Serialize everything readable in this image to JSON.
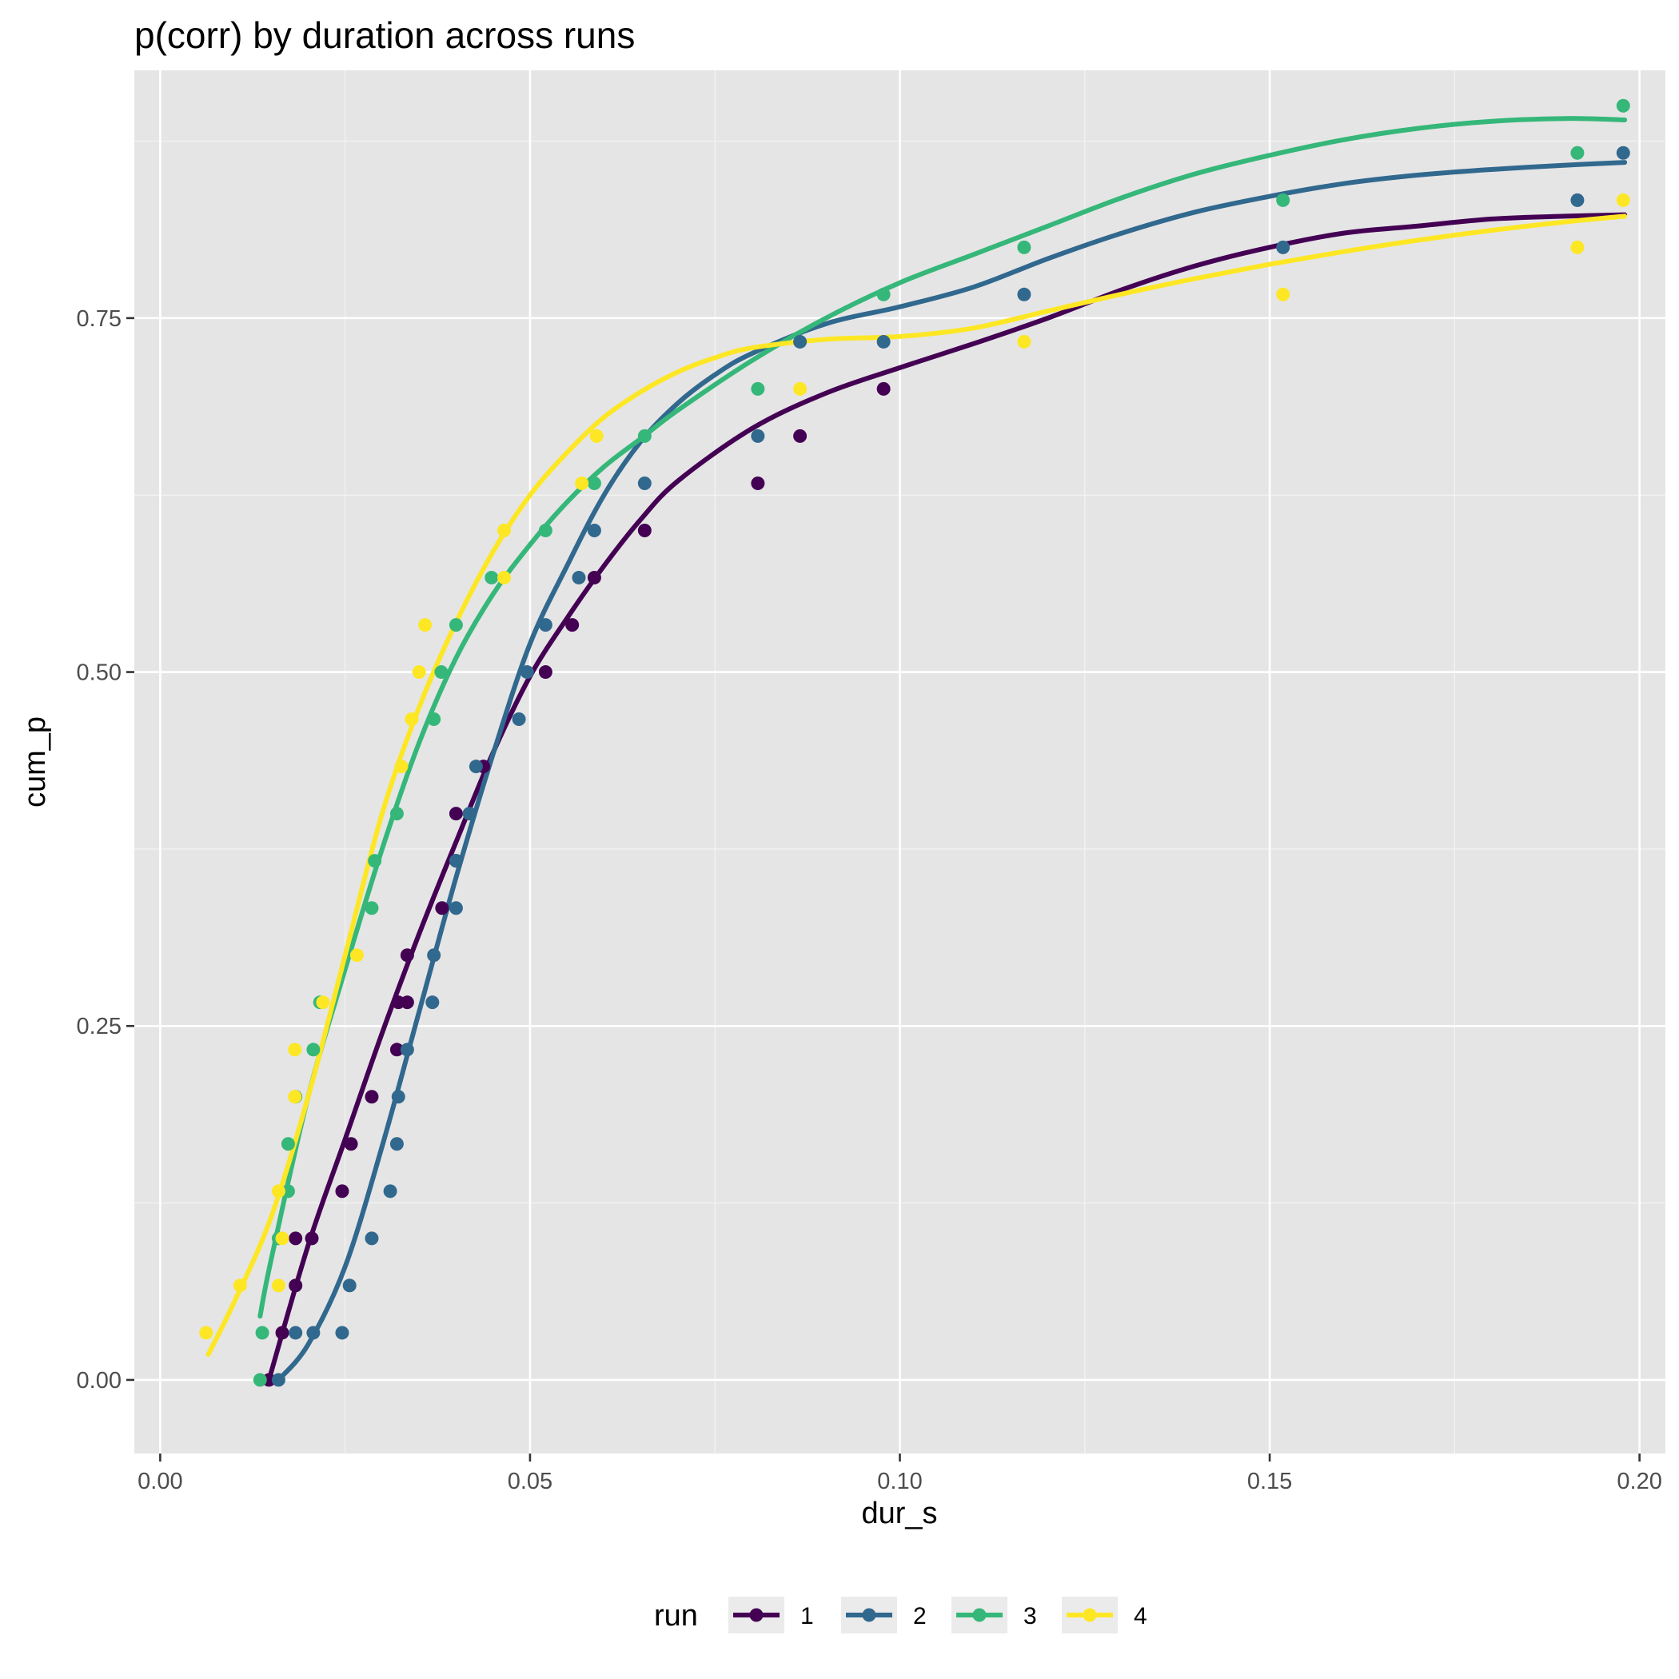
{
  "chart_data": {
    "type": "scatter",
    "title": "p(corr) by duration across runs",
    "xlabel": "dur_s",
    "ylabel": "cum_p",
    "xlim": [
      -0.0035,
      0.2035
    ],
    "ylim": [
      -0.052,
      0.925
    ],
    "x_ticks": [
      0.0,
      0.05,
      0.1,
      0.15,
      0.2
    ],
    "x_tick_labels": [
      "0.00",
      "0.05",
      "0.10",
      "0.15",
      "0.20"
    ],
    "y_ticks": [
      0.0,
      0.25,
      0.5,
      0.75
    ],
    "y_tick_labels": [
      "0.00",
      "0.25",
      "0.50",
      "0.75"
    ],
    "grid": true,
    "legend": {
      "title": "run",
      "position": "bottom"
    },
    "series": [
      {
        "name": "1",
        "color": "#440154",
        "points": [
          [
            0.0147,
            0.0
          ],
          [
            0.0165,
            0.0333
          ],
          [
            0.0183,
            0.0667
          ],
          [
            0.0183,
            0.1
          ],
          [
            0.0205,
            0.1
          ],
          [
            0.0246,
            0.1333
          ],
          [
            0.0258,
            0.1667
          ],
          [
            0.0286,
            0.2
          ],
          [
            0.032,
            0.2333
          ],
          [
            0.0322,
            0.2667
          ],
          [
            0.0334,
            0.2667
          ],
          [
            0.0334,
            0.3
          ],
          [
            0.0381,
            0.3333
          ],
          [
            0.04,
            0.3667
          ],
          [
            0.04,
            0.4
          ],
          [
            0.0437,
            0.4333
          ],
          [
            0.0521,
            0.5
          ],
          [
            0.0557,
            0.5333
          ],
          [
            0.0587,
            0.5667
          ],
          [
            0.0655,
            0.6
          ],
          [
            0.0808,
            0.6333
          ],
          [
            0.0865,
            0.6667
          ],
          [
            0.0978,
            0.7
          ]
        ],
        "smooth": [
          [
            0.0147,
            0.0
          ],
          [
            0.02,
            0.095
          ],
          [
            0.025,
            0.17
          ],
          [
            0.03,
            0.245
          ],
          [
            0.035,
            0.315
          ],
          [
            0.04,
            0.38
          ],
          [
            0.045,
            0.443
          ],
          [
            0.05,
            0.497
          ],
          [
            0.055,
            0.538
          ],
          [
            0.06,
            0.575
          ],
          [
            0.065,
            0.608
          ],
          [
            0.07,
            0.635
          ],
          [
            0.08,
            0.672
          ],
          [
            0.09,
            0.697
          ],
          [
            0.1,
            0.715
          ],
          [
            0.11,
            0.732
          ],
          [
            0.12,
            0.75
          ],
          [
            0.13,
            0.77
          ],
          [
            0.14,
            0.787
          ],
          [
            0.15,
            0.8
          ],
          [
            0.16,
            0.81
          ],
          [
            0.17,
            0.815
          ],
          [
            0.18,
            0.82
          ],
          [
            0.19,
            0.822
          ],
          [
            0.198,
            0.823
          ]
        ]
      },
      {
        "name": "2",
        "color": "#31688e",
        "points": [
          [
            0.016,
            0.0
          ],
          [
            0.0183,
            0.0333
          ],
          [
            0.0207,
            0.0333
          ],
          [
            0.0246,
            0.0333
          ],
          [
            0.0256,
            0.0667
          ],
          [
            0.0286,
            0.1
          ],
          [
            0.0311,
            0.1333
          ],
          [
            0.032,
            0.1667
          ],
          [
            0.0322,
            0.2
          ],
          [
            0.0334,
            0.2333
          ],
          [
            0.0368,
            0.2667
          ],
          [
            0.037,
            0.3
          ],
          [
            0.04,
            0.3333
          ],
          [
            0.04,
            0.3667
          ],
          [
            0.0418,
            0.4
          ],
          [
            0.0427,
            0.4333
          ],
          [
            0.0485,
            0.4667
          ],
          [
            0.0496,
            0.5
          ],
          [
            0.0521,
            0.5333
          ],
          [
            0.0566,
            0.5667
          ],
          [
            0.0587,
            0.6
          ],
          [
            0.0655,
            0.6333
          ],
          [
            0.0808,
            0.6667
          ],
          [
            0.0865,
            0.7333
          ],
          [
            0.0978,
            0.7333
          ],
          [
            0.1168,
            0.7667
          ],
          [
            0.1518,
            0.8
          ],
          [
            0.1916,
            0.8333
          ],
          [
            0.1978,
            0.8667
          ]
        ],
        "smooth": [
          [
            0.016,
            0.0
          ],
          [
            0.02,
            0.025
          ],
          [
            0.025,
            0.08
          ],
          [
            0.03,
            0.165
          ],
          [
            0.035,
            0.26
          ],
          [
            0.04,
            0.355
          ],
          [
            0.045,
            0.442
          ],
          [
            0.05,
            0.52
          ],
          [
            0.055,
            0.575
          ],
          [
            0.06,
            0.625
          ],
          [
            0.065,
            0.663
          ],
          [
            0.07,
            0.69
          ],
          [
            0.075,
            0.71
          ],
          [
            0.08,
            0.725
          ],
          [
            0.09,
            0.746
          ],
          [
            0.1,
            0.758
          ],
          [
            0.11,
            0.772
          ],
          [
            0.12,
            0.792
          ],
          [
            0.13,
            0.81
          ],
          [
            0.14,
            0.825
          ],
          [
            0.15,
            0.836
          ],
          [
            0.16,
            0.845
          ],
          [
            0.17,
            0.851
          ],
          [
            0.18,
            0.855
          ],
          [
            0.19,
            0.858
          ],
          [
            0.198,
            0.86
          ]
        ]
      },
      {
        "name": "3",
        "color": "#35b779",
        "points": [
          [
            0.0135,
            0.0
          ],
          [
            0.0138,
            0.0333
          ],
          [
            0.016,
            0.1
          ],
          [
            0.0173,
            0.1333
          ],
          [
            0.0173,
            0.1667
          ],
          [
            0.0183,
            0.2
          ],
          [
            0.0207,
            0.2333
          ],
          [
            0.0216,
            0.2667
          ],
          [
            0.0286,
            0.3333
          ],
          [
            0.029,
            0.3667
          ],
          [
            0.032,
            0.4
          ],
          [
            0.037,
            0.4667
          ],
          [
            0.038,
            0.5
          ],
          [
            0.04,
            0.5333
          ],
          [
            0.0448,
            0.5667
          ],
          [
            0.0521,
            0.6
          ],
          [
            0.0587,
            0.6333
          ],
          [
            0.0655,
            0.6667
          ],
          [
            0.0808,
            0.7
          ],
          [
            0.0978,
            0.7667
          ],
          [
            0.1168,
            0.8
          ],
          [
            0.1518,
            0.8333
          ],
          [
            0.1916,
            0.8667
          ],
          [
            0.1978,
            0.9
          ]
        ],
        "smooth": [
          [
            0.0135,
            0.045
          ],
          [
            0.015,
            0.085
          ],
          [
            0.02,
            0.2
          ],
          [
            0.025,
            0.29
          ],
          [
            0.03,
            0.375
          ],
          [
            0.035,
            0.45
          ],
          [
            0.04,
            0.51
          ],
          [
            0.045,
            0.555
          ],
          [
            0.05,
            0.59
          ],
          [
            0.055,
            0.62
          ],
          [
            0.06,
            0.645
          ],
          [
            0.065,
            0.665
          ],
          [
            0.07,
            0.685
          ],
          [
            0.08,
            0.72
          ],
          [
            0.09,
            0.75
          ],
          [
            0.1,
            0.775
          ],
          [
            0.11,
            0.795
          ],
          [
            0.12,
            0.815
          ],
          [
            0.13,
            0.835
          ],
          [
            0.14,
            0.852
          ],
          [
            0.15,
            0.865
          ],
          [
            0.16,
            0.876
          ],
          [
            0.17,
            0.884
          ],
          [
            0.18,
            0.889
          ],
          [
            0.19,
            0.891
          ],
          [
            0.198,
            0.89
          ]
        ]
      },
      {
        "name": "4",
        "color": "#fde725",
        "points": [
          [
            0.0062,
            0.0333
          ],
          [
            0.0108,
            0.0667
          ],
          [
            0.016,
            0.0667
          ],
          [
            0.0165,
            0.1
          ],
          [
            0.016,
            0.1333
          ],
          [
            0.0182,
            0.2
          ],
          [
            0.0182,
            0.2333
          ],
          [
            0.022,
            0.2667
          ],
          [
            0.0266,
            0.3
          ],
          [
            0.0326,
            0.4333
          ],
          [
            0.034,
            0.4667
          ],
          [
            0.035,
            0.5
          ],
          [
            0.0358,
            0.5333
          ],
          [
            0.0465,
            0.5667
          ],
          [
            0.0465,
            0.6
          ],
          [
            0.057,
            0.6333
          ],
          [
            0.059,
            0.6667
          ],
          [
            0.0865,
            0.7
          ],
          [
            0.1168,
            0.7333
          ],
          [
            0.1518,
            0.7667
          ],
          [
            0.1916,
            0.8
          ],
          [
            0.1978,
            0.8333
          ]
        ],
        "smooth": [
          [
            0.0065,
            0.018
          ],
          [
            0.01,
            0.055
          ],
          [
            0.015,
            0.115
          ],
          [
            0.02,
            0.2
          ],
          [
            0.025,
            0.3
          ],
          [
            0.03,
            0.4
          ],
          [
            0.035,
            0.475
          ],
          [
            0.04,
            0.535
          ],
          [
            0.045,
            0.585
          ],
          [
            0.05,
            0.625
          ],
          [
            0.055,
            0.655
          ],
          [
            0.06,
            0.68
          ],
          [
            0.065,
            0.698
          ],
          [
            0.07,
            0.712
          ],
          [
            0.075,
            0.722
          ],
          [
            0.08,
            0.729
          ],
          [
            0.09,
            0.735
          ],
          [
            0.1,
            0.737
          ],
          [
            0.11,
            0.743
          ],
          [
            0.12,
            0.755
          ],
          [
            0.13,
            0.767
          ],
          [
            0.14,
            0.778
          ],
          [
            0.15,
            0.788
          ],
          [
            0.16,
            0.797
          ],
          [
            0.17,
            0.805
          ],
          [
            0.18,
            0.812
          ],
          [
            0.19,
            0.818
          ],
          [
            0.198,
            0.822
          ]
        ]
      }
    ]
  }
}
